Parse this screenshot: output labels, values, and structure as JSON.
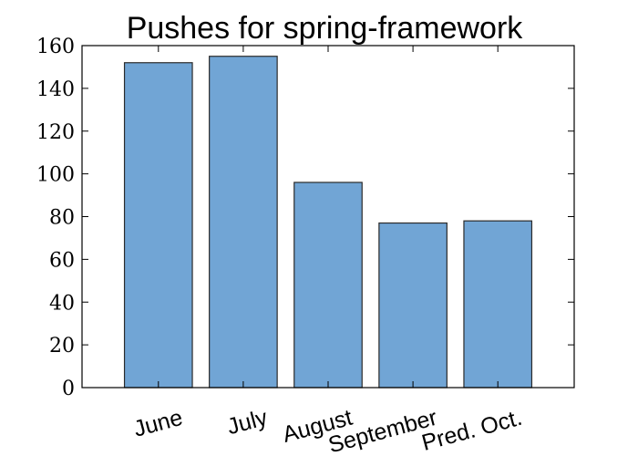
{
  "chart_data": {
    "type": "bar",
    "title": "Pushes for spring-framework",
    "categories": [
      "June",
      "July",
      "August",
      "September",
      "Pred. Oct."
    ],
    "values": [
      152,
      155,
      96,
      77,
      78
    ],
    "xlabel": "",
    "ylabel": "",
    "ylim": [
      0,
      160
    ],
    "yticks": [
      "0",
      "20",
      "40",
      "60",
      "80",
      "100",
      "120",
      "140",
      "160"
    ],
    "bar_color": "#71a5d5",
    "edge_color": "#2b2b2b",
    "grid": false,
    "legend": "none"
  }
}
